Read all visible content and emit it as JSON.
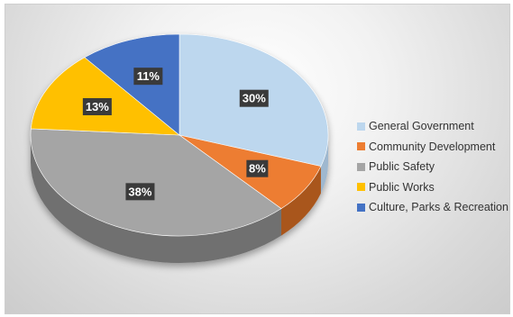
{
  "chart_data": {
    "type": "pie",
    "style": "3d",
    "title": "",
    "legend_position": "right",
    "slices": [
      {
        "label": "General Government",
        "value": 30,
        "display": "30%",
        "color": "#bdd7ee",
        "side_color": "#9fb8cf"
      },
      {
        "label": "Community Development",
        "value": 8,
        "display": "8%",
        "color": "#ed7d31",
        "side_color": "#a9561c"
      },
      {
        "label": "Public Safety",
        "value": 38,
        "display": "38%",
        "color": "#a5a5a5",
        "side_color": "#6f6f6f"
      },
      {
        "label": "Public Works",
        "value": 13,
        "display": "13%",
        "color": "#ffc000",
        "side_color": "#b98a00"
      },
      {
        "label": "Culture, Parks & Recreation",
        "value": 11,
        "display": "11%",
        "color": "#4472c4",
        "side_color": "#2f528f"
      }
    ]
  }
}
